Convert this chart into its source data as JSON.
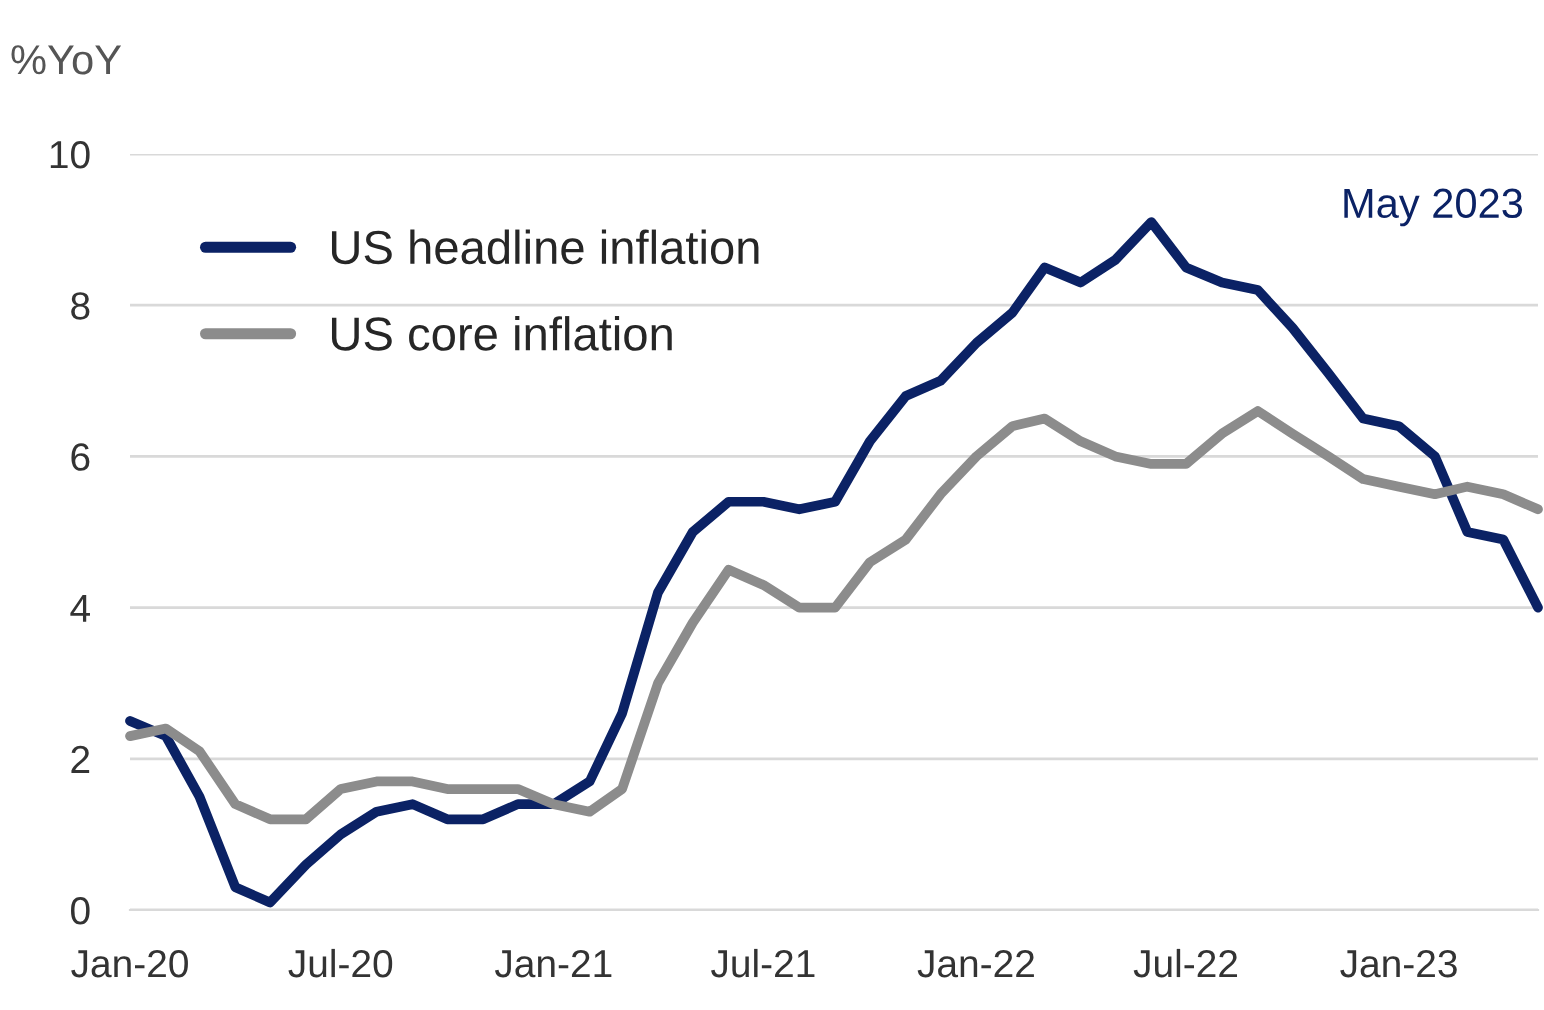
{
  "chart_data": {
    "type": "line",
    "ylabel": "%YoY",
    "annotations": [
      "May 2023"
    ],
    "x": [
      "2020-01",
      "2020-02",
      "2020-03",
      "2020-04",
      "2020-05",
      "2020-06",
      "2020-07",
      "2020-08",
      "2020-09",
      "2020-10",
      "2020-11",
      "2020-12",
      "2021-01",
      "2021-02",
      "2021-03",
      "2021-04",
      "2021-05",
      "2021-06",
      "2021-07",
      "2021-08",
      "2021-09",
      "2021-10",
      "2021-11",
      "2021-12",
      "2022-01",
      "2022-02",
      "2022-03",
      "2022-04",
      "2022-05",
      "2022-06",
      "2022-07",
      "2022-08",
      "2022-09",
      "2022-10",
      "2022-11",
      "2022-12",
      "2023-01",
      "2023-02",
      "2023-03",
      "2023-04",
      "2023-05"
    ],
    "series": [
      {
        "name": "US headline inflation",
        "color": "#0b2265",
        "values": [
          2.5,
          2.3,
          1.5,
          0.3,
          0.1,
          0.6,
          1.0,
          1.3,
          1.4,
          1.2,
          1.2,
          1.4,
          1.4,
          1.7,
          2.6,
          4.2,
          5.0,
          5.4,
          5.4,
          5.3,
          5.4,
          6.2,
          6.8,
          7.0,
          7.5,
          7.9,
          8.5,
          8.3,
          8.6,
          9.1,
          8.5,
          8.3,
          8.2,
          7.7,
          7.1,
          6.5,
          6.4,
          6.0,
          5.0,
          4.9,
          4.0
        ]
      },
      {
        "name": "US core inflation",
        "color": "#8c8c8c",
        "values": [
          2.3,
          2.4,
          2.1,
          1.4,
          1.2,
          1.2,
          1.6,
          1.7,
          1.7,
          1.6,
          1.6,
          1.6,
          1.4,
          1.3,
          1.6,
          3.0,
          3.8,
          4.5,
          4.3,
          4.0,
          4.0,
          4.6,
          4.9,
          5.5,
          6.0,
          6.4,
          6.5,
          6.2,
          6.0,
          5.9,
          5.9,
          6.3,
          6.6,
          6.3,
          6.0,
          5.7,
          5.6,
          5.5,
          5.6,
          5.5,
          5.3
        ]
      }
    ],
    "xlim": [
      "2020-01",
      "2023-05"
    ],
    "xticks": [
      {
        "value": "2020-01",
        "label": "Jan-20"
      },
      {
        "value": "2020-07",
        "label": "Jul-20"
      },
      {
        "value": "2021-01",
        "label": "Jan-21"
      },
      {
        "value": "2021-07",
        "label": "Jul-21"
      },
      {
        "value": "2022-01",
        "label": "Jan-22"
      },
      {
        "value": "2022-07",
        "label": "Jul-22"
      },
      {
        "value": "2023-01",
        "label": "Jan-23"
      }
    ],
    "ylim": [
      0,
      10
    ],
    "yticks": [
      0,
      2,
      4,
      6,
      8,
      10
    ],
    "grid": "y",
    "legend": "top left",
    "line_style": "solid",
    "marker": "none"
  }
}
